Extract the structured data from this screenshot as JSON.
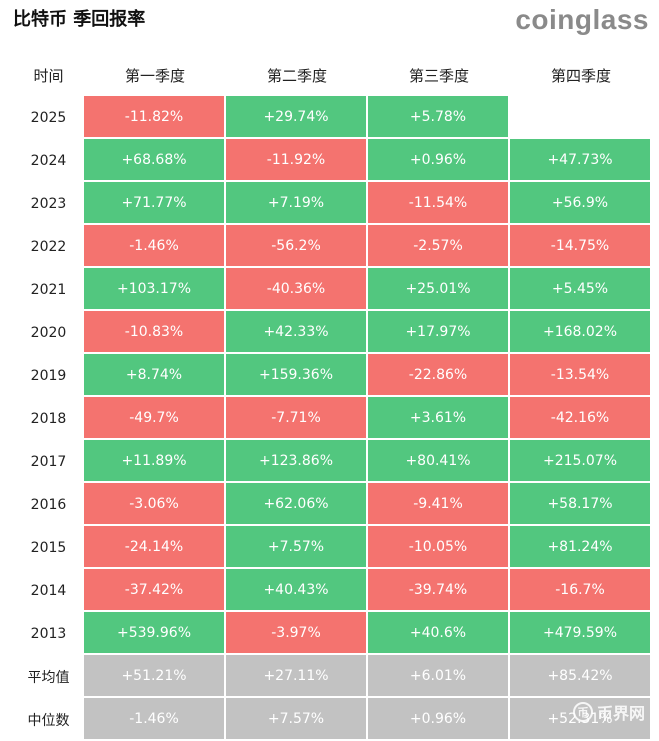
{
  "header": {
    "title": "比特币 季回报率",
    "logo": "coinglass"
  },
  "chart_data": {
    "type": "table",
    "title": "比特币 季回报率",
    "columns": [
      "时间",
      "第一季度",
      "第二季度",
      "第三季度",
      "第四季度"
    ],
    "rows": [
      {
        "label": "2025",
        "values": [
          "-11.82%",
          "+29.74%",
          "+5.78%",
          ""
        ]
      },
      {
        "label": "2024",
        "values": [
          "+68.68%",
          "-11.92%",
          "+0.96%",
          "+47.73%"
        ]
      },
      {
        "label": "2023",
        "values": [
          "+71.77%",
          "+7.19%",
          "-11.54%",
          "+56.9%"
        ]
      },
      {
        "label": "2022",
        "values": [
          "-1.46%",
          "-56.2%",
          "-2.57%",
          "-14.75%"
        ]
      },
      {
        "label": "2021",
        "values": [
          "+103.17%",
          "-40.36%",
          "+25.01%",
          "+5.45%"
        ]
      },
      {
        "label": "2020",
        "values": [
          "-10.83%",
          "+42.33%",
          "+17.97%",
          "+168.02%"
        ]
      },
      {
        "label": "2019",
        "values": [
          "+8.74%",
          "+159.36%",
          "-22.86%",
          "-13.54%"
        ]
      },
      {
        "label": "2018",
        "values": [
          "-49.7%",
          "-7.71%",
          "+3.61%",
          "-42.16%"
        ]
      },
      {
        "label": "2017",
        "values": [
          "+11.89%",
          "+123.86%",
          "+80.41%",
          "+215.07%"
        ]
      },
      {
        "label": "2016",
        "values": [
          "-3.06%",
          "+62.06%",
          "-9.41%",
          "+58.17%"
        ]
      },
      {
        "label": "2015",
        "values": [
          "-24.14%",
          "+7.57%",
          "-10.05%",
          "+81.24%"
        ]
      },
      {
        "label": "2014",
        "values": [
          "-37.42%",
          "+40.43%",
          "-39.74%",
          "-16.7%"
        ]
      },
      {
        "label": "2013",
        "values": [
          "+539.96%",
          "-3.97%",
          "+40.6%",
          "+479.59%"
        ]
      }
    ],
    "summary_rows": [
      {
        "label": "平均值",
        "values": [
          "+51.21%",
          "+27.11%",
          "+6.01%",
          "+85.42%"
        ]
      },
      {
        "label": "中位数",
        "values": [
          "-1.46%",
          "+7.57%",
          "+0.96%",
          "+52.31%"
        ]
      }
    ],
    "colors": {
      "positive": "#52c77f",
      "negative": "#f4736f",
      "summary": "#c2c2c2"
    }
  },
  "watermark": {
    "symbol": "币",
    "text": "币界网"
  }
}
